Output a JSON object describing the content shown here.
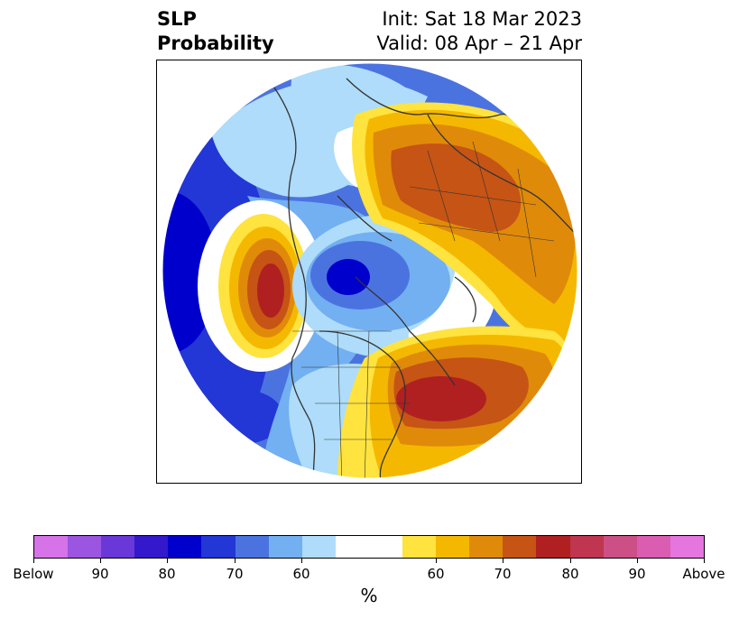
{
  "title": {
    "left_line1": "SLP",
    "left_line2": "Probability",
    "right_line1": "Init: Sat 18 Mar 2023",
    "right_line2": "Valid: 08 Apr – 21 Apr"
  },
  "colorbar": {
    "colors": [
      "#d673e8",
      "#9b55e0",
      "#6a37d8",
      "#3418cc",
      "#0000cc",
      "#2336d6",
      "#4b73e0",
      "#72b0f2",
      "#aedcfa",
      "#ffffff",
      "#ffffff",
      "#ffe33f",
      "#f5b800",
      "#e08a0a",
      "#c65415",
      "#b02020",
      "#c03550",
      "#cc4f86",
      "#da5db2",
      "#e576df"
    ],
    "labels": [
      "Below",
      "90",
      "80",
      "70",
      "60",
      "60",
      "70",
      "80",
      "90",
      "Above"
    ],
    "unit": "%"
  }
}
